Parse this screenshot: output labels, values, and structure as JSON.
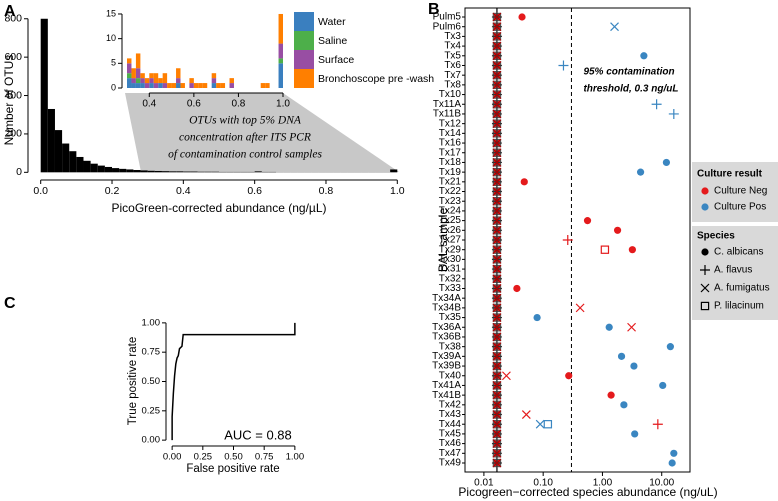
{
  "chart_data": [
    {
      "panel_label": "A",
      "type": "histogram",
      "x_label": "PicoGreen-corrected abundance (ng/µL)",
      "y_label": "Number of OTUs",
      "bins": [
        0,
        0.02,
        0.04,
        0.06,
        0.08,
        0.1,
        0.12,
        0.14,
        0.16,
        0.18,
        0.2,
        0.22,
        0.24,
        0.26,
        0.28,
        0.3,
        0.32,
        0.34,
        0.36,
        0.38,
        0.4,
        0.42,
        0.44,
        0.46,
        0.48,
        0.5,
        0.52,
        0.54,
        0.56,
        0.58,
        0.6,
        0.62,
        0.64,
        0.66,
        0.68,
        0.7,
        0.72,
        0.74,
        0.76,
        0.78,
        0.8,
        0.82,
        0.84,
        0.86,
        0.88,
        0.9,
        0.92,
        0.94,
        0.96,
        0.98,
        1
      ],
      "values": [
        800,
        330,
        220,
        150,
        110,
        80,
        60,
        45,
        35,
        28,
        22,
        18,
        15,
        12,
        10,
        8,
        7,
        6,
        5,
        5,
        4,
        4,
        3,
        3,
        3,
        2,
        2,
        2,
        2,
        2,
        5,
        2,
        2,
        1,
        1,
        1,
        1,
        1,
        1,
        1,
        1,
        1,
        1,
        1,
        1,
        1,
        1,
        1,
        1,
        15
      ],
      "color": "#000000",
      "xlim": [
        -0.03,
        1.03
      ],
      "ylim": [
        -40,
        830
      ],
      "xticks": [
        {
          "value": 0,
          "label": "0.0"
        },
        0.2,
        0.4,
        0.6,
        0.8,
        {
          "value": 1,
          "label": "1.0"
        }
      ],
      "yticks": [
        0,
        200,
        400,
        600,
        800
      ],
      "annotation": [
        "OTUs with  top 5% DNA",
        "concentration after ITS PCR",
        "of contamination control samples"
      ]
    },
    {
      "type": "stacked_histogram",
      "bins": [
        0.3,
        0.32,
        0.34,
        0.36,
        0.38,
        0.4,
        0.42,
        0.44,
        0.46,
        0.48,
        0.5,
        0.52,
        0.54,
        0.56,
        0.58,
        0.6,
        0.62,
        0.64,
        0.66,
        0.68,
        0.7,
        0.72,
        0.74,
        0.76,
        0.78,
        0.8,
        0.82,
        0.84,
        0.86,
        0.88,
        0.9,
        0.92,
        0.94,
        0.96,
        0.98,
        1
      ],
      "series": [
        {
          "name": "Water",
          "color": "#3a7fbf",
          "values": [
            2,
            1,
            1,
            1,
            0,
            1,
            0,
            1,
            0,
            0,
            0,
            1,
            0,
            0,
            0,
            0,
            0,
            0,
            0,
            1,
            0,
            0,
            0,
            0,
            0,
            0,
            0,
            0,
            0,
            0,
            0,
            0,
            0,
            0,
            5
          ]
        },
        {
          "name": "Saline",
          "color": "#4daf4a",
          "values": [
            1,
            0,
            1,
            0,
            0,
            0,
            0,
            0,
            0,
            0,
            0,
            0,
            0,
            0,
            0,
            0,
            0,
            0,
            0,
            0,
            0,
            0,
            0,
            0,
            0,
            0,
            0,
            0,
            0,
            0,
            0,
            0,
            0,
            0,
            1
          ]
        },
        {
          "name": "Surface",
          "color": "#984ea3",
          "values": [
            2,
            1,
            2,
            1,
            1,
            1,
            1,
            0,
            1,
            0,
            0,
            1,
            0,
            0,
            1,
            0,
            0,
            0,
            0,
            1,
            0,
            0,
            0,
            1,
            0,
            0,
            0,
            0,
            0,
            0,
            0,
            0,
            0,
            0,
            3
          ]
        },
        {
          "name": "Bronchoscope pre  -wash",
          "color": "#ff7f00",
          "values": [
            1,
            2,
            3,
            1,
            1,
            1,
            2,
            1,
            2,
            1,
            1,
            2,
            1,
            0,
            1,
            1,
            1,
            1,
            0,
            1,
            1,
            1,
            0,
            1,
            0,
            0,
            0,
            0,
            0,
            0,
            1,
            1,
            0,
            0,
            6
          ]
        }
      ],
      "xlim": [
        0.291,
        1.0
      ],
      "ylim": [
        0,
        15.4
      ],
      "xticks": [
        0.4,
        0.6,
        0.8,
        {
          "value": 1,
          "label": "1.0"
        }
      ],
      "yticks": [
        0,
        5,
        10,
        15
      ]
    },
    {
      "panel_label": "B",
      "type": "dot",
      "x_label": "Picogreen−corrected species abundance (ng/uL)",
      "y_label": "BAL sample",
      "log_x": true,
      "categories": [
        "Pulm5",
        "Pulm6",
        "Tx3",
        "Tx4",
        "Tx5",
        "Tx6",
        "Tx7",
        "Tx8",
        "Tx10",
        "Tx11A",
        "Tx11B",
        "Tx12",
        "Tx14",
        "Tx16",
        "Tx17",
        "Tx18",
        "Tx19",
        "Tx21",
        "Tx22",
        "Tx23",
        "Tx24",
        "Tx25",
        "Tx26",
        "Tx27",
        "Tx29",
        "Tx30",
        "Tx31",
        "Tx32",
        "Tx33",
        "Tx34A",
        "Tx34B",
        "Tx35",
        "Tx36A",
        "Tx36B",
        "Tx38",
        "Tx39A",
        "Tx39B",
        "Tx40",
        "Tx41A",
        "Tx41B",
        "Tx42",
        "Tx43",
        "Tx44",
        "Tx45",
        "Tx46",
        "Tx47",
        "Tx49"
      ],
      "xlim": [
        0.0048,
        30
      ],
      "xticks": [
        {
          "value": 0.01,
          "label": "0.01"
        },
        {
          "value": 0.1,
          "label": "0.10"
        },
        {
          "value": 1,
          "label": "1.00"
        },
        {
          "value": 10,
          "label": "10.00"
        }
      ],
      "floor_x": 0.0166,
      "threshold": {
        "value": 0.3,
        "label": [
          "95% contamination",
          "threshold, 0.3 ng/uL"
        ]
      },
      "legend": {
        "color_title": "Culture result",
        "colors": [
          {
            "name": "Culture Neg",
            "color": "#e41a1c"
          },
          {
            "name": "Culture Pos",
            "color": "#3a86c1"
          }
        ],
        "shape_title": "Species",
        "shapes": [
          {
            "name": "C. albicans",
            "marker": "circle"
          },
          {
            "name": "A. flavus",
            "marker": "plus"
          },
          {
            "name": "A. fumigatus",
            "marker": "cross"
          },
          {
            "name": "P. lilacinum",
            "marker": "square"
          }
        ]
      },
      "points": [
        {
          "y": "Pulm5",
          "x": 0.044,
          "culture": "Culture Neg",
          "species": "C. albicans"
        },
        {
          "y": "Pulm6",
          "x": 1.6,
          "culture": "Culture Pos",
          "species": "A. fumigatus"
        },
        {
          "y": "Tx5",
          "x": 5.0,
          "culture": "Culture Pos",
          "species": "C. albicans"
        },
        {
          "y": "Tx6",
          "x": 0.22,
          "culture": "Culture Pos",
          "species": "A. flavus"
        },
        {
          "y": "Tx11A",
          "x": 8.2,
          "culture": "Culture Pos",
          "species": "A. flavus"
        },
        {
          "y": "Tx11B",
          "x": 16,
          "culture": "Culture Pos",
          "species": "A. flavus"
        },
        {
          "y": "Tx18",
          "x": 12,
          "culture": "Culture Pos",
          "species": "C. albicans"
        },
        {
          "y": "Tx19",
          "x": 4.4,
          "culture": "Culture Pos",
          "species": "C. albicans"
        },
        {
          "y": "Tx21",
          "x": 0.048,
          "culture": "Culture Neg",
          "species": "C. albicans"
        },
        {
          "y": "Tx25",
          "x": 0.56,
          "culture": "Culture Neg",
          "species": "C. albicans"
        },
        {
          "y": "Tx26",
          "x": 1.8,
          "culture": "Culture Neg",
          "species": "C. albicans"
        },
        {
          "y": "Tx27",
          "x": 0.26,
          "culture": "Culture Neg",
          "species": "A. flavus"
        },
        {
          "y": "Tx29",
          "x": 1.1,
          "culture": "Culture Neg",
          "species": "P. lilacinum"
        },
        {
          "y": "Tx29",
          "x": 3.2,
          "culture": "Culture Neg",
          "species": "C. albicans"
        },
        {
          "y": "Tx33",
          "x": 0.036,
          "culture": "Culture Neg",
          "species": "C. albicans"
        },
        {
          "y": "Tx34B",
          "x": 0.42,
          "culture": "Culture Neg",
          "species": "A. fumigatus"
        },
        {
          "y": "Tx35",
          "x": 0.079,
          "culture": "Culture Pos",
          "species": "C. albicans"
        },
        {
          "y": "Tx36A",
          "x": 1.3,
          "culture": "Culture Pos",
          "species": "C. albicans"
        },
        {
          "y": "Tx36A",
          "x": 3.1,
          "culture": "Culture Neg",
          "species": "A. fumigatus"
        },
        {
          "y": "Tx38",
          "x": 14,
          "culture": "Culture Pos",
          "species": "C. albicans"
        },
        {
          "y": "Tx39A",
          "x": 2.1,
          "culture": "Culture Pos",
          "species": "C. albicans"
        },
        {
          "y": "Tx39B",
          "x": 3.4,
          "culture": "Culture Pos",
          "species": "C. albicans"
        },
        {
          "y": "Tx40",
          "x": 0.024,
          "culture": "Culture Neg",
          "species": "A. fumigatus"
        },
        {
          "y": "Tx40",
          "x": 0.27,
          "culture": "Culture Neg",
          "species": "C. albicans"
        },
        {
          "y": "Tx41A",
          "x": 10.4,
          "culture": "Culture Pos",
          "species": "C. albicans"
        },
        {
          "y": "Tx41B",
          "x": 1.4,
          "culture": "Culture Neg",
          "species": "C. albicans"
        },
        {
          "y": "Tx42",
          "x": 2.3,
          "culture": "Culture Pos",
          "species": "C. albicans"
        },
        {
          "y": "Tx43",
          "x": 0.052,
          "culture": "Culture Neg",
          "species": "A. fumigatus"
        },
        {
          "y": "Tx44",
          "x": 0.089,
          "culture": "Culture Pos",
          "species": "A. fumigatus"
        },
        {
          "y": "Tx44",
          "x": 0.12,
          "culture": "Culture Pos",
          "species": "P. lilacinum"
        },
        {
          "y": "Tx44",
          "x": 8.6,
          "culture": "Culture Neg",
          "species": "A. flavus"
        },
        {
          "y": "Tx45",
          "x": 3.5,
          "culture": "Culture Pos",
          "species": "C. albicans"
        },
        {
          "y": "Tx47",
          "x": 16,
          "culture": "Culture Pos",
          "species": "C. albicans"
        },
        {
          "y": "Tx49",
          "x": 15,
          "culture": "Culture Pos",
          "species": "C. albicans"
        }
      ]
    },
    {
      "panel_label": "C",
      "type": "line",
      "x_label": "False positive rate",
      "y_label": "True positive rate",
      "annotation": "AUC = 0.88",
      "color": "#000000",
      "x": [
        0,
        0,
        0.01,
        0.02,
        0.03,
        0.04,
        0.05,
        0.06,
        0.08,
        0.09,
        1,
        1
      ],
      "values": [
        0,
        0.2,
        0.4,
        0.55,
        0.65,
        0.7,
        0.72,
        0.78,
        0.8,
        0.9,
        0.9,
        1
      ],
      "xlim": [
        -0.05,
        1.05
      ],
      "ylim": [
        -0.05,
        1.05
      ],
      "xticks": [
        {
          "value": 0,
          "label": "0.00"
        },
        0.25,
        {
          "value": 0.5,
          "label": "0.50"
        },
        0.75,
        {
          "value": 1,
          "label": "1.00"
        }
      ],
      "yticks": [
        {
          "value": 0,
          "label": "0.00"
        },
        0.25,
        {
          "value": 0.5,
          "label": "0.50"
        },
        0.75,
        {
          "value": 1,
          "label": "1.00"
        }
      ]
    }
  ]
}
